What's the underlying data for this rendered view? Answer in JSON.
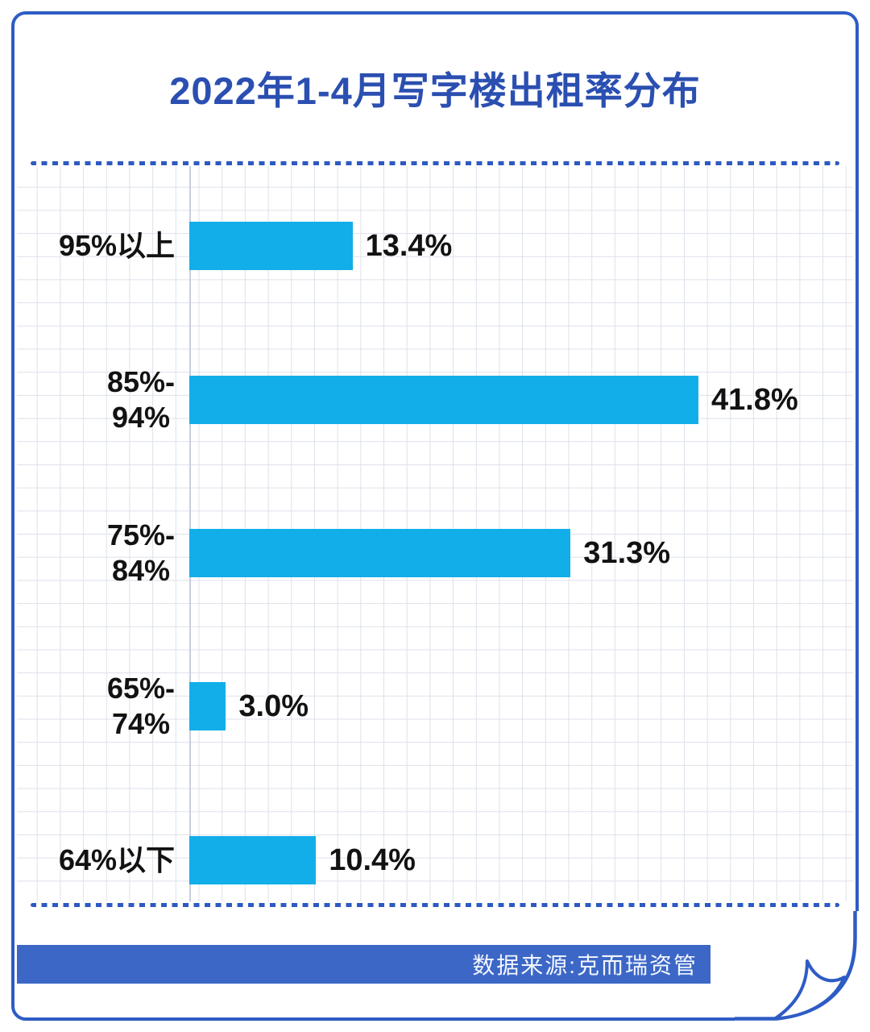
{
  "title": "2022年1-4月写字楼出租率分布",
  "source_label": "数据来源:克而瑞资管",
  "colors": {
    "frame_blue": "#2e5cc5",
    "title_blue": "#2b4fb1",
    "bar_cyan": "#12aee9",
    "source_band_blue": "#3c67c6",
    "grid_line": "#dde1ec",
    "text_black": "#121212"
  },
  "chart_data": {
    "type": "bar",
    "orientation": "horizontal",
    "title": "2022年1-4月写字楼出租率分布",
    "categories": [
      "95%以上",
      "85%-\n94%",
      "75%-\n84%",
      "65%-\n74%",
      "64%以下"
    ],
    "values": [
      13.4,
      41.8,
      31.3,
      3.0,
      10.4
    ],
    "value_labels": [
      "13.4%",
      "41.8%",
      "31.3%",
      "3.0%",
      "10.4%"
    ],
    "unit": "%",
    "xlim": [
      0,
      45
    ],
    "grid": true,
    "legend": "none",
    "value_label_position": "right-of-bar",
    "source": "数据来源:克而瑞资管"
  }
}
